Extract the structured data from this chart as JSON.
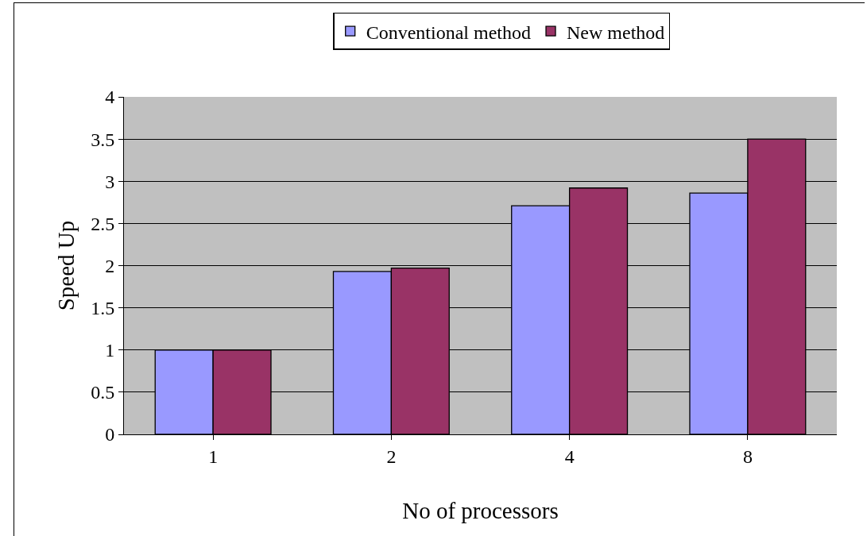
{
  "chart_data": {
    "type": "bar",
    "xlabel": "No of processors",
    "ylabel": "Speed Up",
    "categories": [
      "1",
      "2",
      "4",
      "8"
    ],
    "series": [
      {
        "name": "Conventional method",
        "color": "#9999ff",
        "values": [
          1,
          1.93,
          2.71,
          2.86
        ]
      },
      {
        "name": "New method",
        "color": "#993366",
        "values": [
          1,
          1.97,
          2.92,
          3.5
        ]
      }
    ],
    "ylim": [
      0,
      4
    ],
    "yticks": [
      0,
      0.5,
      1,
      1.5,
      2,
      2.5,
      3,
      3.5,
      4
    ],
    "grid": "y",
    "legend": "top"
  }
}
